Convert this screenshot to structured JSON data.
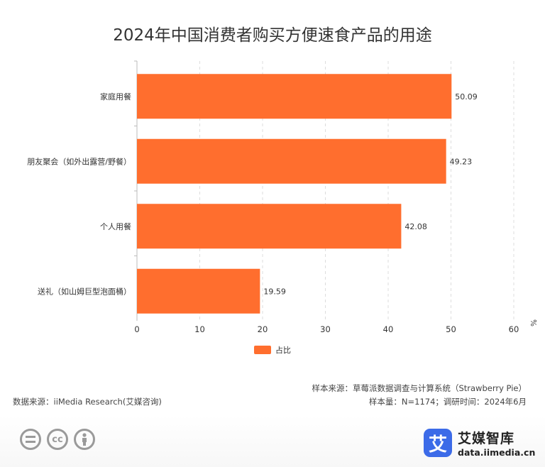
{
  "chart_data": {
    "type": "bar",
    "orientation": "horizontal",
    "title": "2024年中国消费者购买方便速食产品的用途",
    "categories": [
      "家庭用餐",
      "朋友聚会（如外出露营/野餐）",
      "个人用餐",
      "送礼（如山姆巨型泡面桶）"
    ],
    "series": [
      {
        "name": "占比",
        "values": [
          50.09,
          49.23,
          42.08,
          19.59
        ],
        "color": "#FF6E2E"
      }
    ],
    "value_labels": [
      "50.09",
      "49.23",
      "42.08",
      "19.59"
    ],
    "xlim": [
      0,
      60
    ],
    "xticks": [
      0,
      10,
      20,
      30,
      40,
      50,
      60
    ],
    "xtick_labels": [
      "0",
      "10",
      "20",
      "30",
      "40",
      "50",
      "60"
    ],
    "unit": "%",
    "grid": true,
    "legend_position": "bottom"
  },
  "footer": {
    "source": "数据来源：iiMedia Research(艾媒咨询)",
    "sample_source": "样本来源：草莓派数据调查与计算系统（Strawberry Pie）",
    "sample_info": "样本量：N=1174；调研时间：2024年6月"
  },
  "brand": {
    "mark": "艾",
    "name": "艾媒智库",
    "url": "data.iimedia.cn"
  },
  "license_icons": [
    "equals-icon",
    "cc-icon",
    "person-icon"
  ],
  "license_glyphs": {
    "cc": "cc"
  }
}
